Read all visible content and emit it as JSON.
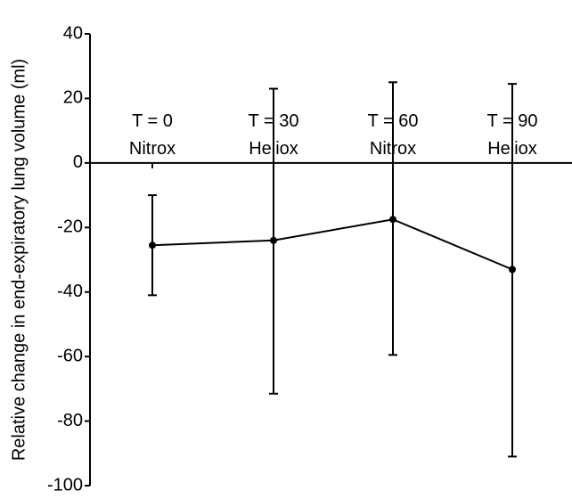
{
  "chart_data": {
    "type": "line",
    "title": "",
    "ylabel": "Relative change in end-expiratory lung volume (ml)",
    "xlabel": "",
    "ylim": [
      -100,
      40
    ],
    "yticks": [
      "40",
      "20",
      "0",
      "-20",
      "-40",
      "-60",
      "-80",
      "-100"
    ],
    "categories": [
      {
        "time": "T = 0",
        "gas": "Nitrox"
      },
      {
        "time": "T = 30",
        "gas": "Heliox"
      },
      {
        "time": "T = 60",
        "gas": "Nitrox"
      },
      {
        "time": "T = 90",
        "gas": "Heliox"
      }
    ],
    "series": [
      {
        "values": [
          -25.5,
          -24,
          -17.5,
          -33
        ],
        "error_low": [
          -41,
          -71.5,
          -59.5,
          -91
        ],
        "error_high": [
          -10,
          23,
          25,
          24.5
        ]
      }
    ],
    "grid": false,
    "legend": "none"
  }
}
